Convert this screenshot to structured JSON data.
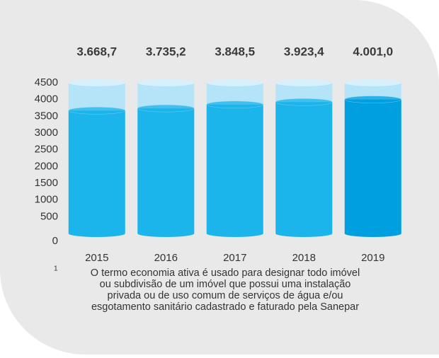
{
  "chart_data": {
    "type": "bar",
    "categories": [
      "2015",
      "2016",
      "2017",
      "2018",
      "2019"
    ],
    "values": [
      3668.7,
      3735.2,
      3848.5,
      3923.4,
      4001.0
    ],
    "value_labels": [
      "3.668,7",
      "3.735,2",
      "3.848,5",
      "3.923,4",
      "4.001,0"
    ],
    "colors": [
      "#1bb5ec",
      "#1bb5ec",
      "#1bb5ec",
      "#1bb5ec",
      "#009fe0"
    ],
    "track_color": "#b5e3f8",
    "ylim": [
      0,
      4500
    ],
    "yticks": [
      0,
      500,
      1000,
      1500,
      2000,
      2500,
      3000,
      3500,
      4000,
      4500
    ],
    "grid": false,
    "footnote": {
      "marker": "1",
      "lines": [
        "O termo economia ativa é usado para designar todo imóvel",
        "ou subdivisão de um imóvel que possui uma instalação",
        "privada ou de uso comum de serviços de água e/ou",
        "esgotamento sanitário cadastrado e faturado pela Sanepar"
      ]
    }
  }
}
